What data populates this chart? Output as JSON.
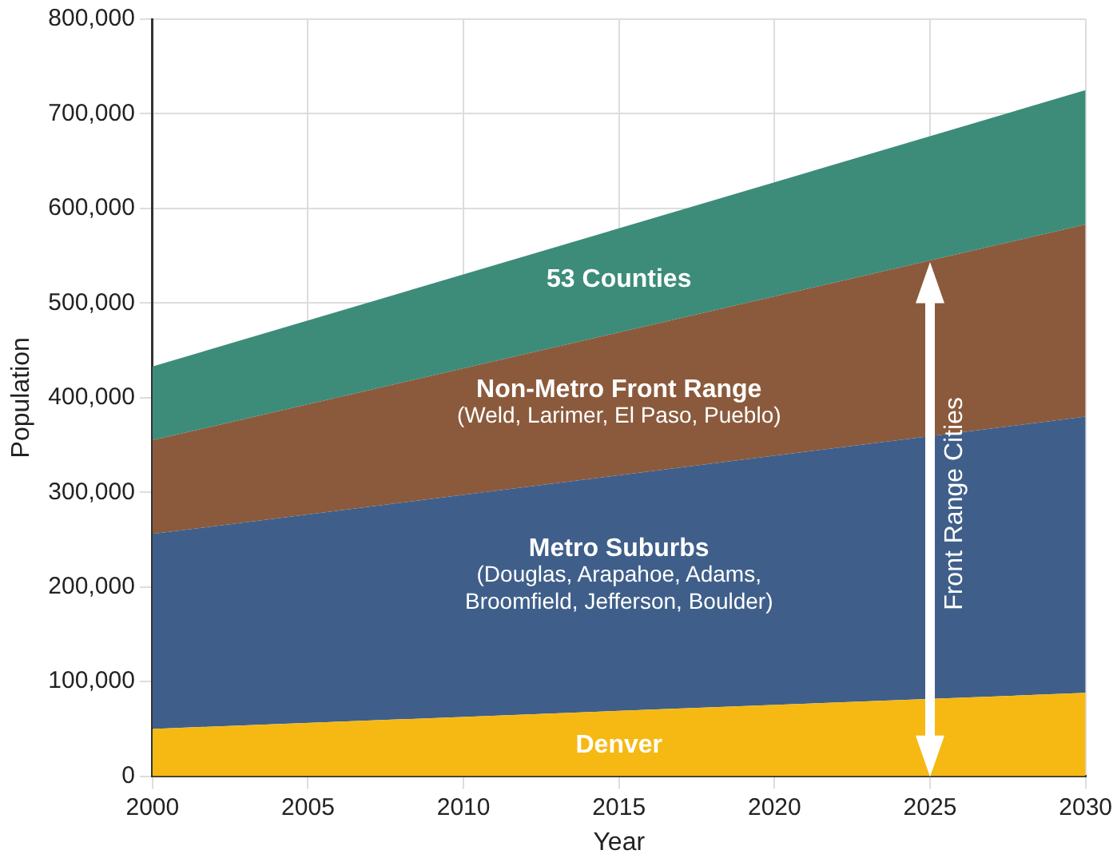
{
  "chart_data": {
    "type": "area",
    "stacked": true,
    "xlabel": "Year",
    "ylabel": "Population",
    "x": [
      2000,
      2030
    ],
    "series": [
      {
        "color": "#f6b913",
        "values": [
          50000,
          88000
        ]
      },
      {
        "color": "#3f5f8a",
        "values": [
          206000,
          292000
        ]
      },
      {
        "color": "#8b5a3c",
        "values": [
          99000,
          203000
        ]
      },
      {
        "color": "#3d8c7a",
        "values": [
          78000,
          142000
        ]
      }
    ],
    "xlim": [
      2000,
      2030
    ],
    "xticks": [
      2000,
      2005,
      2010,
      2015,
      2020,
      2025,
      2030
    ],
    "ylim": [
      0,
      800000
    ],
    "yticks": [
      {
        "value": 0,
        "label": "0"
      },
      {
        "value": 100000,
        "label": "100,000"
      },
      {
        "value": 200000,
        "label": "200,000"
      },
      {
        "value": 300000,
        "label": "300,000"
      },
      {
        "value": 400000,
        "label": "400,000"
      },
      {
        "value": 500000,
        "label": "500,000"
      },
      {
        "value": 600000,
        "label": "600,000"
      },
      {
        "value": 700000,
        "label": "700,000"
      },
      {
        "value": 800000,
        "label": "800,000"
      }
    ],
    "grid": true,
    "legend": false,
    "annotations": [
      "53 Counties",
      "Non-Metro Front Range",
      "(Weld, Larimer, El Paso, Pueblo)",
      "Metro Suburbs",
      "(Douglas, Arapahoe, Adams,\nBroomfield, Jefferson, Boulder)",
      "Denver",
      "Front Range Cities"
    ]
  }
}
